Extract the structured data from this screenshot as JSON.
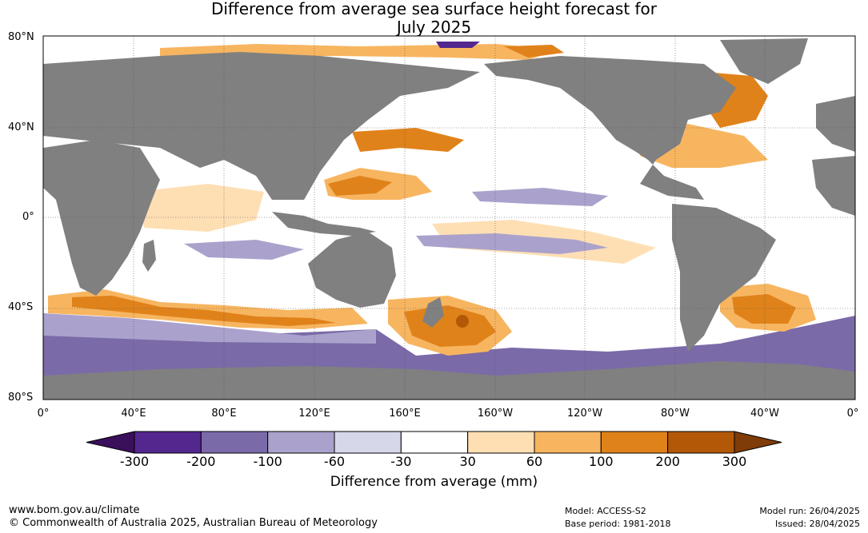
{
  "title_line1": "Difference from average sea surface height forecast for",
  "title_line2": "July 2025",
  "lat_labels": [
    "80°N",
    "40°N",
    "0°",
    "40°S",
    "80°S"
  ],
  "lon_labels": [
    "0°",
    "40°E",
    "80°E",
    "120°E",
    "160°E",
    "160°W",
    "120°W",
    "80°W",
    "40°W",
    "0°"
  ],
  "colorbar": {
    "ticks": [
      "-300",
      "-200",
      "-100",
      "-60",
      "-30",
      "30",
      "60",
      "100",
      "200",
      "300"
    ],
    "colors": [
      "#3a0f5c",
      "#54278f",
      "#7b6aa8",
      "#aaa2cc",
      "#d7d7ea",
      "#ffffff",
      "#fedfb4",
      "#f7b560",
      "#e0821a",
      "#b35806",
      "#7f3b08"
    ],
    "title": "Difference from average (mm)"
  },
  "land_color": "#808080",
  "footer": {
    "url": "www.bom.gov.au/climate",
    "copyright": "© Commonwealth of Australia 2025, Australian Bureau of Meteorology",
    "model": "Model: ACCESS-S2",
    "base_period": "Base period: 1981-2018",
    "model_run": "Model run: 26/04/2025",
    "issued": "Issued: 28/04/2025"
  }
}
